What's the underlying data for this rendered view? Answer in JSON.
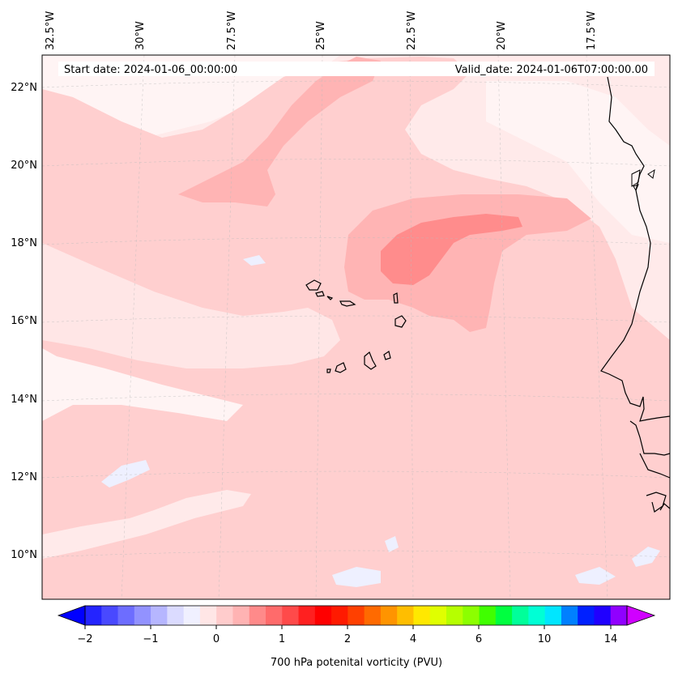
{
  "header": {
    "start_date": "Start date: 2024-01-06_00:00:00",
    "valid_date": "Valid_date: 2024-01-06T07:00:00.00"
  },
  "longitude_labels": [
    "32.5°W",
    "30°W",
    "27.5°W",
    "25°W",
    "22.5°W",
    "20°W",
    "17.5°W"
  ],
  "latitude_labels": [
    "22°N",
    "20°N",
    "18°N",
    "16°N",
    "14°N",
    "12°N",
    "10°N"
  ],
  "colorbar": {
    "label": "700 hPa potenital vorticity (PVU)",
    "ticks": [
      "−2",
      "−1",
      "0",
      "1",
      "2",
      "4",
      "6",
      "10",
      "14"
    ],
    "colors": [
      "#0000ff",
      "#2424ff",
      "#4949ff",
      "#6d6dff",
      "#9292ff",
      "#b6b6ff",
      "#dbdbff",
      "#f0f0ff",
      "#ffe6e6",
      "#ffcccc",
      "#ffb3b3",
      "#ff8a8a",
      "#ff6b6b",
      "#ff4a4a",
      "#ff2020",
      "#ff0000",
      "#ff1a00",
      "#ff4000",
      "#ff6a00",
      "#ff9400",
      "#ffbe00",
      "#ffe800",
      "#e0ff00",
      "#b6ff00",
      "#8cff00",
      "#40ff00",
      "#00ff40",
      "#00ff9a",
      "#00ffd5",
      "#00e6ff",
      "#0080ff",
      "#0020ff",
      "#2000ff",
      "#9000ff",
      "#d000ff"
    ]
  },
  "palette": {
    "background": "#ffeaea",
    "light": "#ffe2e2",
    "mid": "#ffcccc",
    "strong": "#ffb3b3",
    "core": "#ff8a8a",
    "white": "#fff3f3",
    "blue": "#eef0ff"
  }
}
